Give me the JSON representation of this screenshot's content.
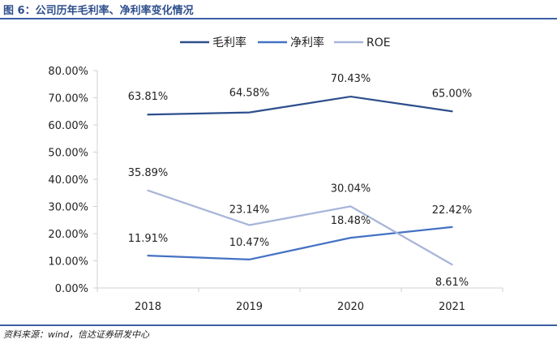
{
  "figure": {
    "title": "图 6：公司历年毛利率、净利率变化情况",
    "source": "资料来源：wind，信达证券研发中心"
  },
  "chart_data": {
    "type": "line",
    "categories": [
      "2018",
      "2019",
      "2020",
      "2021"
    ],
    "y_ticks": [
      "0.00%",
      "10.00%",
      "20.00%",
      "30.00%",
      "40.00%",
      "50.00%",
      "60.00%",
      "70.00%",
      "80.00%"
    ],
    "ylim": [
      0,
      80
    ],
    "legend_position": "top-center",
    "grid": false,
    "series": [
      {
        "name": "毛利率",
        "color": "#2e4f8c",
        "values": [
          63.81,
          64.58,
          70.43,
          65.0
        ],
        "labels": [
          "63.81%",
          "64.58%",
          "70.43%",
          "65.00%"
        ],
        "label_position": "above"
      },
      {
        "name": "净利率",
        "color": "#4472c4",
        "values": [
          11.91,
          10.47,
          18.48,
          22.42
        ],
        "labels": [
          "11.91%",
          "10.47%",
          "18.48%",
          "22.42%"
        ],
        "label_position": "above"
      },
      {
        "name": "ROE",
        "color": "#a7b5d9",
        "values": [
          35.89,
          23.14,
          30.04,
          8.61
        ],
        "labels": [
          "35.89%",
          "23.14%",
          "30.04%",
          "8.61%"
        ],
        "label_position": "mixed"
      }
    ]
  }
}
